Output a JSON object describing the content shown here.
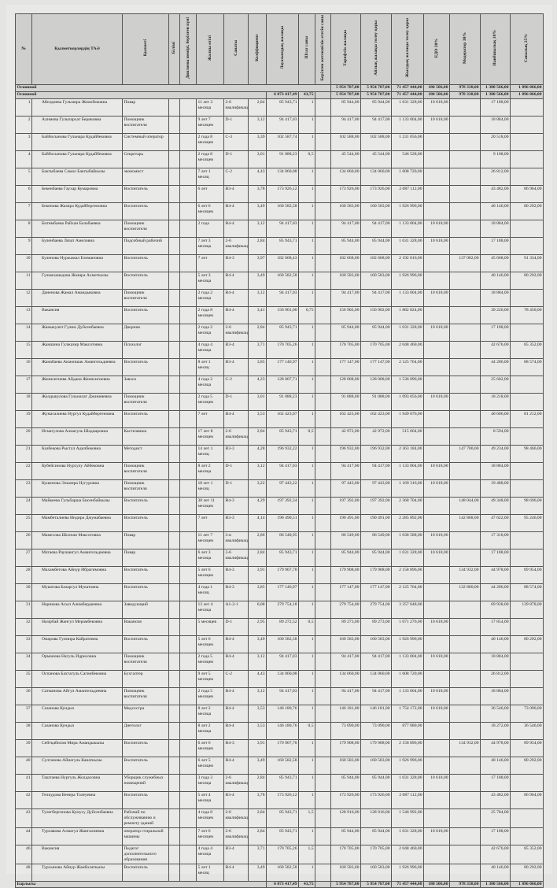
{
  "headers": [
    "№",
    "Қызметкерлердің ТАӘ",
    "Қызметі",
    "Білімі",
    "Дипломы нөмірі, берілген күні",
    "Жалпы өтілі",
    "Санаты",
    "Коэффициент",
    "Лауазымдық жалақы",
    "Штат саны",
    "Берілген жетекшілік ететін саны",
    "Тарифтік жалақы",
    "Айлық жалақы төлеу қоры",
    "Жылдық жалақы төлеу қоры",
    "ЕДО 20%",
    "Модератор 30%",
    "Наибшылық 10%",
    "Сапалық 25%"
  ],
  "group1": {
    "label": "Основной",
    "tariff": "5 954 787,00",
    "monthly": "5 954 787,00",
    "yearly": "71 457 444,00",
    "edo": "180 506,00",
    "moderator": "978 338,00",
    "naib": "1 380 566,00",
    "sapa": "1 896 066,00"
  },
  "group2": {
    "label": "Основной",
    "salary": "6 073 417,49",
    "staff": "43,75",
    "tariff": "5 954 787,00",
    "monthly": "5 954 787,00",
    "yearly": "71 457 444,00",
    "edo": "180 506,00",
    "moderator": "978 338,00",
    "naib": "1 380 566,00",
    "sapa": "1 896 066,00"
  },
  "rows": [
    [
      "1",
      "Абелдиева Гульмира Жомобековна",
      "Повар",
      "",
      "",
      "11 лет 3 месяца",
      "2-6 квалификационный",
      "2,84",
      "85 943,71",
      "1",
      "",
      "85 944,00",
      "85 944,00",
      "1 031 328,00",
      "10 618,00",
      "",
      "17 188,00",
      ""
    ],
    [
      "2",
      "Алимова Гульпархат Бериковна",
      "Помощник воспитателя",
      "",
      "",
      "9 лет 7 месяцев",
      "D-1",
      "3,12",
      "94 417,03",
      "1",
      "",
      "94 417,00",
      "94 417,00",
      "1 133 004,00",
      "10 618,00",
      "",
      "18 884,00",
      ""
    ],
    [
      "3",
      "Байбосынова Гульнара Кудайбековна",
      "Системный оператор",
      "",
      "",
      "2 года 8 месяцев",
      "C-3",
      "3,39",
      "102 587,74",
      "1",
      "",
      "102 588,00",
      "102 588,00",
      "1 231 056,00",
      "",
      "",
      "20 518,00",
      ""
    ],
    [
      "4",
      "Байбосынова Гульнара Кудайбековна",
      "Секретарь",
      "",
      "",
      "2 года 8 месяцев",
      "D-1",
      "3,01",
      "91 088,23",
      "0,5",
      "",
      "45 544,00",
      "45 544,00",
      "546 528,00",
      "",
      "",
      "9 108,00",
      ""
    ],
    [
      "5",
      "Бактыбаева Самал Бактыбайкызы",
      "экономист",
      "",
      "",
      "7 лет 1 месяц",
      "C-2",
      "4,43",
      "134 060,08",
      "1",
      "",
      "134 060,00",
      "134 060,00",
      "1 608 720,00",
      "",
      "",
      "26 812,00",
      ""
    ],
    [
      "6",
      "Бекенбаева Гаухар Кумаровна",
      "Воспитатель",
      "",
      "",
      "6 лет",
      "В3-4",
      "3,78",
      "173 926,12",
      "1",
      "",
      "173 926,00",
      "173 926,00",
      "2 087 112,00",
      "",
      "",
      "43 482,00",
      "86 964,00"
    ],
    [
      "7",
      "Бекенова Жазира Кудайбергеновна",
      "Воспитатель",
      "",
      "",
      "6 лет 6 месяцев",
      "В4-4",
      "3,49",
      "160 582,58",
      "1",
      "",
      "160 583,00",
      "160 583,00",
      "1 926 996,00",
      "",
      "",
      "40 146,00",
      "80 292,00"
    ],
    [
      "8",
      "Битимбаева Райхан Балабаевна",
      "Помощник воспитателя",
      "",
      "",
      "2 года",
      "В4-4",
      "3,12",
      "94 417,03",
      "1",
      "",
      "94 417,00",
      "94 417,00",
      "1 133 004,00",
      "10 618,00",
      "",
      "18 884,00",
      ""
    ],
    [
      "9",
      "Буленбаева Лязат Амеловна",
      "Подсобный рабочий",
      "",
      "",
      "7 лет 3 месяца",
      "2-6 квалификационный",
      "2,84",
      "85 943,71",
      "1",
      "",
      "85 944,00",
      "85 944,00",
      "1 031 328,00",
      "10 618,00",
      "",
      "17 188,00",
      ""
    ],
    [
      "10",
      "Буленова Нуржамал Елемановна",
      "Воспитатель",
      "",
      "",
      "7 лет",
      "В4-3",
      "3,97",
      "182 668,43",
      "1",
      "",
      "182 668,00",
      "182 668,00",
      "2 192 016,00",
      "",
      "137 002,00",
      "45 668,00",
      "91 334,00"
    ],
    [
      "11",
      "Гулмахамедова Жазира Ахметкызы",
      "Воспитатель",
      "",
      "",
      "5 лет 3 месяца",
      "В4-4",
      "3,49",
      "160 582,58",
      "1",
      "",
      "160 583,00",
      "160 583,00",
      "1 926 996,00",
      "",
      "",
      "40 146,00",
      "80 292,00"
    ],
    [
      "12",
      "Даненова Жамал Амандыковна",
      "Помощник воспитателя",
      "",
      "",
      "2 года 2 месяца",
      "В4-4",
      "3,12",
      "94 417,03",
      "1",
      "",
      "94 417,00",
      "94 417,00",
      "1 133 004,00",
      "10 618,00",
      "",
      "18 884,00",
      ""
    ],
    [
      "13",
      "Вакансия",
      "Воспитатель",
      "",
      "",
      "2 года 8 месяцев",
      "В4-4",
      "3,41",
      "156 901,60",
      "0,75",
      "",
      "156 902,00",
      "156 902,00",
      "1 882 824,00",
      "",
      "",
      "39 226,00",
      "78 450,00"
    ],
    [
      "14",
      "Жаныкулит Гулим Дуйсенбаевна",
      "Дворник",
      "",
      "",
      "2 года 2 месяца",
      "2-6 квалификационный",
      "2,84",
      "85 943,71",
      "1",
      "",
      "85 944,00",
      "85 944,00",
      "1 031 328,00",
      "10 618,00",
      "",
      "17 188,00",
      ""
    ],
    [
      "15",
      "Жаншина Гулжазир Максотовна",
      "Психолог",
      "",
      "",
      "4 года 4 месяца",
      "В3-4",
      "3,71",
      "170 705,26",
      "1",
      "",
      "170 705,00",
      "170 705,00",
      "2 048 460,00",
      "",
      "",
      "42 676,00",
      "85 352,00"
    ],
    [
      "16",
      "Жанабаева Акмоншак Амангельдиевна",
      "Воспитатель",
      "",
      "",
      "8 лет 1 месяц",
      "В3-4",
      "3,85",
      "177 146,97",
      "1",
      "",
      "177 147,00",
      "177 147,00",
      "2 125 764,00",
      "",
      "",
      "44 286,00",
      "88 574,00"
    ],
    [
      "17",
      "Женисигиева Айдана Женисигиевна",
      "Завхоз",
      "",
      "",
      "4 года 2 месяца",
      "C-2",
      "4,23",
      "128 007,71",
      "1",
      "",
      "128 008,00",
      "128 008,00",
      "1 536 096,00",
      "",
      "",
      "25 602,00",
      ""
    ],
    [
      "18",
      "Жолдыкулова Гульнахат Джанияевна",
      "Помощник воспитателя",
      "",
      "",
      "2 года 5 месяцев",
      "D-1",
      "3,01",
      "91 088,23",
      "1",
      "",
      "91 088,00",
      "91 088,00",
      "1 093 056,00",
      "10 618,00",
      "",
      "18 218,00",
      ""
    ],
    [
      "19",
      "Жумагалиева Нургул Кудайбергеновна",
      "Воспитатель",
      "",
      "",
      "7 лет",
      "В4-4",
      "3,53",
      "162 423,07",
      "1",
      "",
      "162 423,00",
      "162 423,00",
      "1 949 076,00",
      "",
      "",
      "40 606,00",
      "81 212,00"
    ],
    [
      "20",
      "Исмагулова Алмагуль Шадиаровна",
      "Кастелянша",
      "",
      "",
      "17 лет 8 месяцев",
      "2-6 квалификационный",
      "2,84",
      "85 943,71",
      "0,5",
      "",
      "42 972,00",
      "42 972,00",
      "515 664,00",
      "",
      "",
      "8 594,00",
      ""
    ],
    [
      "21",
      "Казбекова Рысгул Адилбековна",
      "Методист",
      "",
      "",
      "14 лет 1 месяц",
      "В3-3",
      "4,28",
      "196 932,22",
      "1",
      "",
      "196 932,00",
      "196 932,00",
      "2 363 184,00",
      "",
      "147 700,00",
      "49 234,00",
      "98 466,00"
    ],
    [
      "22",
      "Кубейсинова Нурсулу Айбековна",
      "Помощник воспитателя",
      "",
      "",
      "8 лет 2 месяца",
      "D-1",
      "3,12",
      "94 417,03",
      "1",
      "",
      "94 417,00",
      "94 417,00",
      "1 133 004,00",
      "10 618,00",
      "",
      "18 884,00",
      ""
    ],
    [
      "23",
      "Кушенова Эльмира Нугуровна",
      "Помощник воспитателя",
      "",
      "",
      "18 лет 1 месяц",
      "D-1",
      "3,22",
      "97 443,22",
      "1",
      "",
      "97 443,00",
      "97 443,00",
      "1 169 316,00",
      "10 618,00",
      "",
      "19 488,00",
      ""
    ],
    [
      "24",
      "Майкеева Гульбарша Бисенбайкызы",
      "Воспитатель",
      "",
      "",
      "38 лет 11 месяцев",
      "В4-3",
      "4,29",
      "197 392,34",
      "1",
      "",
      "197 392,00",
      "197 392,00",
      "2 368 704,00",
      "",
      "148 044,00",
      "49 348,00",
      "98 696,00"
    ],
    [
      "25",
      "Мамбеталиева Индира Джумабаевна",
      "Воспитатель",
      "",
      "",
      "7 лет",
      "В3-3",
      "4,14",
      "190 490,51",
      "1",
      "",
      "190 491,00",
      "190 491,00",
      "2 285 892,00",
      "",
      "142 868,00",
      "47 622,00",
      "95 246,00"
    ],
    [
      "26",
      "Мамесова Шолпан Максотовна",
      "Повар",
      "",
      "",
      "11 лет 7 месяцев",
      "3-я квалификационный",
      "2,86",
      "86 548,95",
      "1",
      "",
      "86 549,00",
      "86 549,00",
      "1 038 588,00",
      "10 618,00",
      "",
      "17 310,00",
      ""
    ],
    [
      "27",
      "Матаева Раушангул Амангельдиевна",
      "Повар",
      "",
      "",
      "6 лет 3 месяца",
      "2-6 квалификационный",
      "2,84",
      "85 943,71",
      "1",
      "",
      "85 944,00",
      "85 944,00",
      "1 031 328,00",
      "10 618,00",
      "",
      "17 188,00",
      ""
    ],
    [
      "28",
      "Махамбетова Айнур Ибрагимовна",
      "Воспитатель",
      "",
      "",
      "5 лет 6 месяцев",
      "В4-3",
      "3,91",
      "179 907,70",
      "1",
      "",
      "179 908,00",
      "179 908,00",
      "2 158 896,00",
      "",
      "134 932,00",
      "44 978,00",
      "89 954,00"
    ],
    [
      "30",
      "Мукатова Базаргул Мукатовна",
      "Воспитатель",
      "",
      "",
      "4 года 1 месяц",
      "В4-3",
      "3,85",
      "177 146,97",
      "1",
      "",
      "177 147,00",
      "177 147,00",
      "2 125 764,00",
      "",
      "132 860,00",
      "44 286,00",
      "88 574,00"
    ],
    [
      "31",
      "Нарикова Асыл Алимбердиевна",
      "Заведующий",
      "",
      "",
      "13 лет 4 месяца",
      "А1-2-1",
      "6,08",
      "279 754,18",
      "1",
      "",
      "279 754,00",
      "279 754,00",
      "3 357 048,00",
      "",
      "",
      "69 938,00",
      "139 878,00"
    ],
    [
      "32",
      "Назірбай Жангул Мерамбековна",
      "Вакансия",
      "",
      "",
      "5 месяцев",
      "D-1",
      "2,95",
      "89 272,52",
      "0,5",
      "",
      "89 273,00",
      "89 273,00",
      "1 071 276,00",
      "10 618,00",
      "",
      "17 854,00",
      ""
    ],
    [
      "33",
      "Омарова Гулмира Кайратовна",
      "Воспитатель",
      "",
      "",
      "5 лет 6 месяцев",
      "В4-4",
      "3,49",
      "160 582,58",
      "1",
      "",
      "160 583,00",
      "160 583,00",
      "1 926 996,00",
      "",
      "",
      "40 146,00",
      "80 292,00"
    ],
    [
      "34",
      "Орманова Нагуль Идрисовна",
      "Помощник воспитателя",
      "",
      "",
      "2 года 5 месяцев",
      "В4-4",
      "3,12",
      "94 417,03",
      "1",
      "",
      "94 417,00",
      "94 417,00",
      "1 133 004,00",
      "10 618,00",
      "",
      "18 884,00",
      ""
    ],
    [
      "35",
      "Оспанова Бахтагуль Сагинбековна",
      "Бухгалтер",
      "",
      "",
      "9 лет 5 месяцев",
      "C-2",
      "4,43",
      "134 060,08",
      "1",
      "",
      "134 060,00",
      "134 060,00",
      "1 608 720,00",
      "",
      "",
      "26 812,00",
      ""
    ],
    [
      "36",
      "Сатманова Айгул Амангельдиевна",
      "Помощник воспитателя",
      "",
      "",
      "2 года 5 месяцев",
      "В4-4",
      "3,12",
      "94 417,03",
      "1",
      "",
      "94 417,00",
      "94 417,00",
      "1 133 004,00",
      "10 618,00",
      "",
      "18 884,00",
      ""
    ],
    [
      "37",
      "Сазанова Кундыз",
      "Медсестра",
      "",
      "",
      "8 лет 2 месяца",
      "В4-4",
      "3,53",
      "146 180,76",
      "1",
      "",
      "146 181,00",
      "146 181,00",
      "1 754 172,00",
      "10 618,00",
      "",
      "36 546,00",
      "73 090,00"
    ],
    [
      "38",
      "Сазанова Кундыз",
      "Диетолог",
      "",
      "",
      "8 лет 2 месяца",
      "В4-4",
      "3,53",
      "146 180,76",
      "0,5",
      "",
      "73 090,00",
      "73 090,00",
      "877 080,00",
      "",
      "",
      "18 272,00",
      "36 546,00"
    ],
    [
      "39",
      "Сейтқабилов Мира Амандыкызы",
      "Воспитатель",
      "",
      "",
      "6 лет 6 месяцев",
      "В4-3",
      "3,91",
      "179 907,70",
      "1",
      "",
      "179 908,00",
      "179 908,00",
      "2 158 896,00",
      "",
      "134 932,00",
      "44 978,00",
      "89 954,00"
    ],
    [
      "40",
      "Султанова Айнагуль Канаткызы",
      "Воспитатель",
      "",
      "",
      "6 лет 5 месяцев",
      "В4-4",
      "3,49",
      "160 582,58",
      "1",
      "",
      "160 583,00",
      "160 583,00",
      "1 926 996,00",
      "",
      "",
      "40 146,00",
      "80 292,00"
    ],
    [
      "41",
      "Таштаева Нургуль Жолдасовна",
      "Уборщик служебных помещений",
      "",
      "",
      "3 года 3 месяца",
      "2-6 квалификационный",
      "2,84",
      "85 943,71",
      "1",
      "",
      "85 944,00",
      "85 944,00",
      "1 031 328,00",
      "10 618,00",
      "",
      "17 188,00",
      ""
    ],
    [
      "42",
      "Телкудова Венера Толеуевна",
      "Воспитатель",
      "",
      "",
      "5 лет 4 месяца",
      "В3-4",
      "3,78",
      "173 926,12",
      "1",
      "",
      "173 926,00",
      "173 926,00",
      "2 087 112,00",
      "",
      "",
      "43 482,00",
      "86 964,00"
    ],
    [
      "43",
      "Тулегбергенова Кумусу Дуйсенбаевна",
      "Рабочий по обслуживанию и ремонту зданий",
      "",
      "",
      "4 года 8 месяцев",
      "2-6 квалификационный",
      "2,84",
      "85 943,71",
      "1,5",
      "",
      "128 916,00",
      "128 916,00",
      "1 546 992,00",
      "",
      "",
      "25 784,00",
      ""
    ],
    [
      "44",
      "Турлавова Алмагул Жангалиевна",
      "оператор стиральной машины",
      "",
      "",
      "7 лет 6 месяцев",
      "2-6 квалификационный",
      "2,84",
      "85 943,71",
      "1",
      "",
      "85 944,00",
      "85 944,00",
      "1 031 328,00",
      "10 618,00",
      "",
      "17 188,00",
      ""
    ],
    [
      "46",
      "Вакансия",
      "Педагог дополнительного образования",
      "",
      "",
      "4 года 4 месяца",
      "В3-4",
      "3,71",
      "170 705,26",
      "1,5",
      "",
      "170 705,00",
      "170 705,00",
      "2 048 460,00",
      "",
      "",
      "42 676,00",
      "85 352,00"
    ],
    [
      "48",
      "Турсынова Айнур Жанболаткызы",
      "Воспитатель",
      "",
      "",
      "5 лет 1 месяц",
      "В4-4",
      "3,49",
      "160 582,58",
      "1",
      "",
      "160 583,00",
      "160 583,00",
      "1 926 996,00",
      "",
      "",
      "40 146,00",
      "80 292,00"
    ]
  ],
  "footer": {
    "label": "Барлығы",
    "salary": "6 073 417,49",
    "staff": "43,75",
    "tariff": "5 954 787,00",
    "monthly": "5 954 787,00",
    "yearly": "71 457 444,00",
    "edo": "180 506,00",
    "moderator": "978 338,00",
    "naib": "1 380 566,00",
    "sapa": "1 896 066,00"
  }
}
